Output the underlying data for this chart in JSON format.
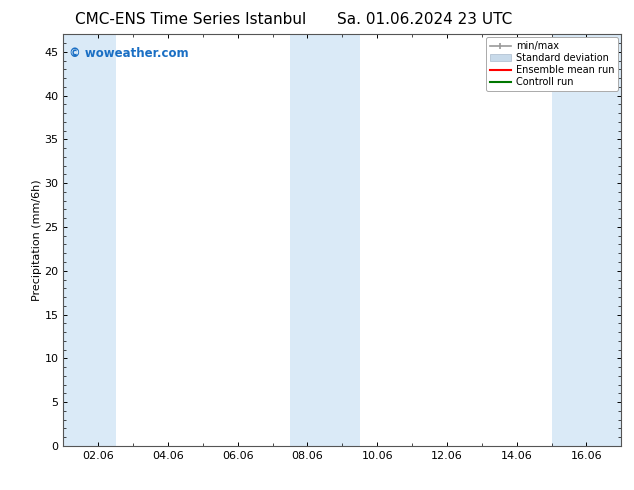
{
  "title": "CMC-ENS Time Series Istanbul",
  "title2": "Sa. 01.06.2024 23 UTC",
  "ylabel": "Precipitation (mm/6h)",
  "watermark": "© woweather.com",
  "watermark_color": "#1a6fc4",
  "ylim": [
    0,
    47
  ],
  "yticks": [
    0,
    5,
    10,
    15,
    20,
    25,
    30,
    35,
    40,
    45
  ],
  "xtick_labels": [
    "02.06",
    "04.06",
    "06.06",
    "08.06",
    "10.06",
    "12.06",
    "14.06",
    "16.06"
  ],
  "xtick_positions": [
    2,
    4,
    6,
    8,
    10,
    12,
    14,
    16
  ],
  "xmin": 1.0,
  "xmax": 17.0,
  "shaded_bands": [
    {
      "x_start": 1.0,
      "x_end": 2.5,
      "color": "#daeaf7"
    },
    {
      "x_start": 7.5,
      "x_end": 9.5,
      "color": "#daeaf7"
    },
    {
      "x_start": 15.0,
      "x_end": 17.0,
      "color": "#daeaf7"
    }
  ],
  "legend_items": [
    {
      "label": "min/max",
      "color": "#aaaaaa",
      "lw": 1.2
    },
    {
      "label": "Standard deviation",
      "color": "#c8daea",
      "lw": 6
    },
    {
      "label": "Ensemble mean run",
      "color": "#ff0000",
      "lw": 1.5
    },
    {
      "label": "Controll run",
      "color": "#007700",
      "lw": 1.5
    }
  ],
  "background_color": "#ffffff",
  "plot_bg_color": "#ffffff",
  "title_fontsize": 11,
  "watermark_fontsize": 8.5,
  "ylabel_fontsize": 8,
  "tick_labelsize": 8
}
